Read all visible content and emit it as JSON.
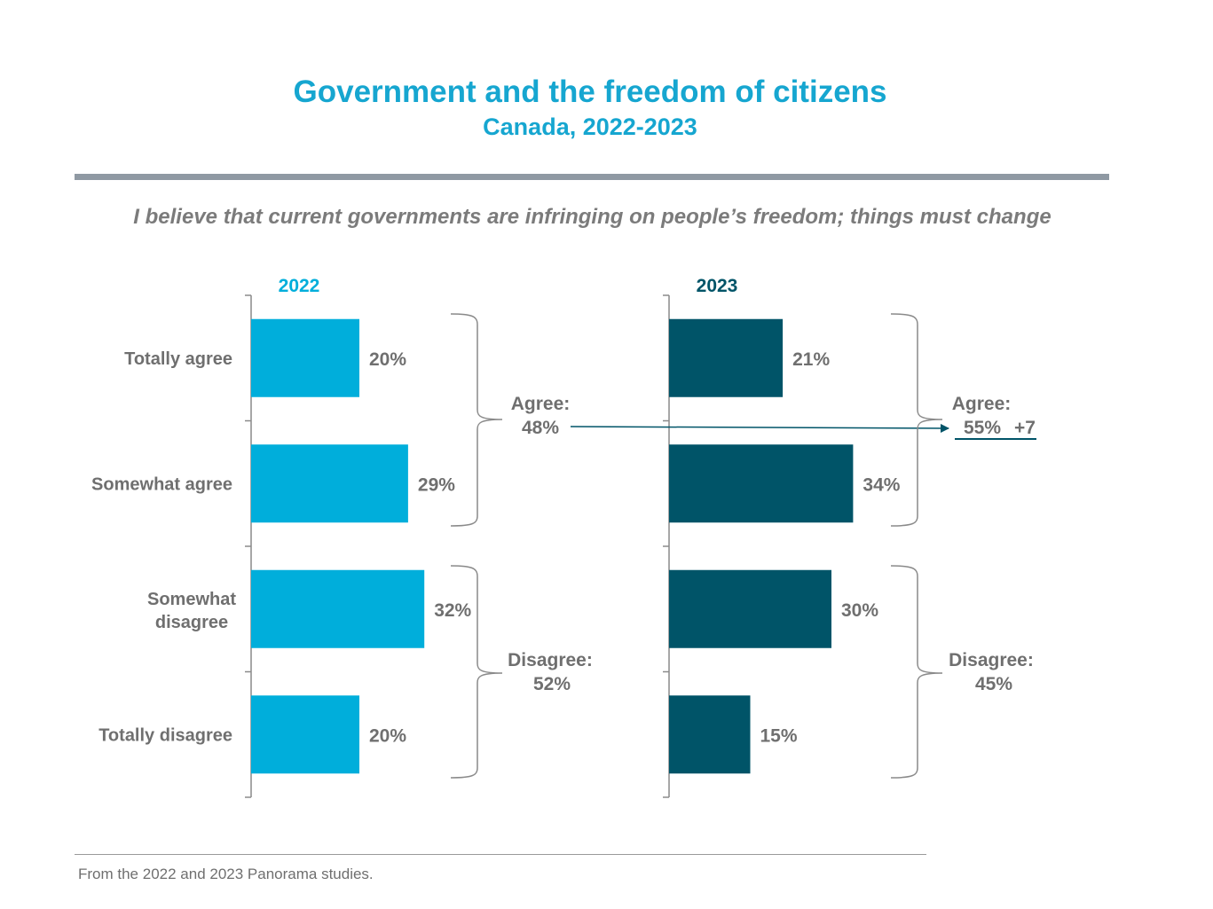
{
  "chart_data": {
    "type": "bar",
    "orientation": "horizontal",
    "title": "Government and the freedom of citizens",
    "subtitle": "Canada, 2022-2023",
    "question": "I believe that current governments are infringing on people’s freedom; things must change",
    "categories": [
      "Totally agree",
      "Somewhat agree",
      "Somewhat disagree",
      "Totally disagree"
    ],
    "series": [
      {
        "name": "2022",
        "color": "#00aedb",
        "values": [
          20,
          29,
          32,
          20
        ],
        "labels": [
          "20%",
          "29%",
          "32%",
          "20%"
        ]
      },
      {
        "name": "2023",
        "color": "#005468",
        "values": [
          21,
          34,
          30,
          15
        ],
        "labels": [
          "21%",
          "34%",
          "30%",
          "15%"
        ]
      }
    ],
    "xlim": [
      0,
      40
    ],
    "groups": {
      "2022": {
        "agree_label": "Agree:",
        "agree_value": "48%",
        "disagree_label": "Disagree:",
        "disagree_value": "52%"
      },
      "2023": {
        "agree_label": "Agree:",
        "agree_value": "55%",
        "agree_change": "+7",
        "disagree_label": "Disagree:",
        "disagree_value": "45%"
      }
    },
    "source": "From the 2022 and 2023 Panorama studies."
  }
}
